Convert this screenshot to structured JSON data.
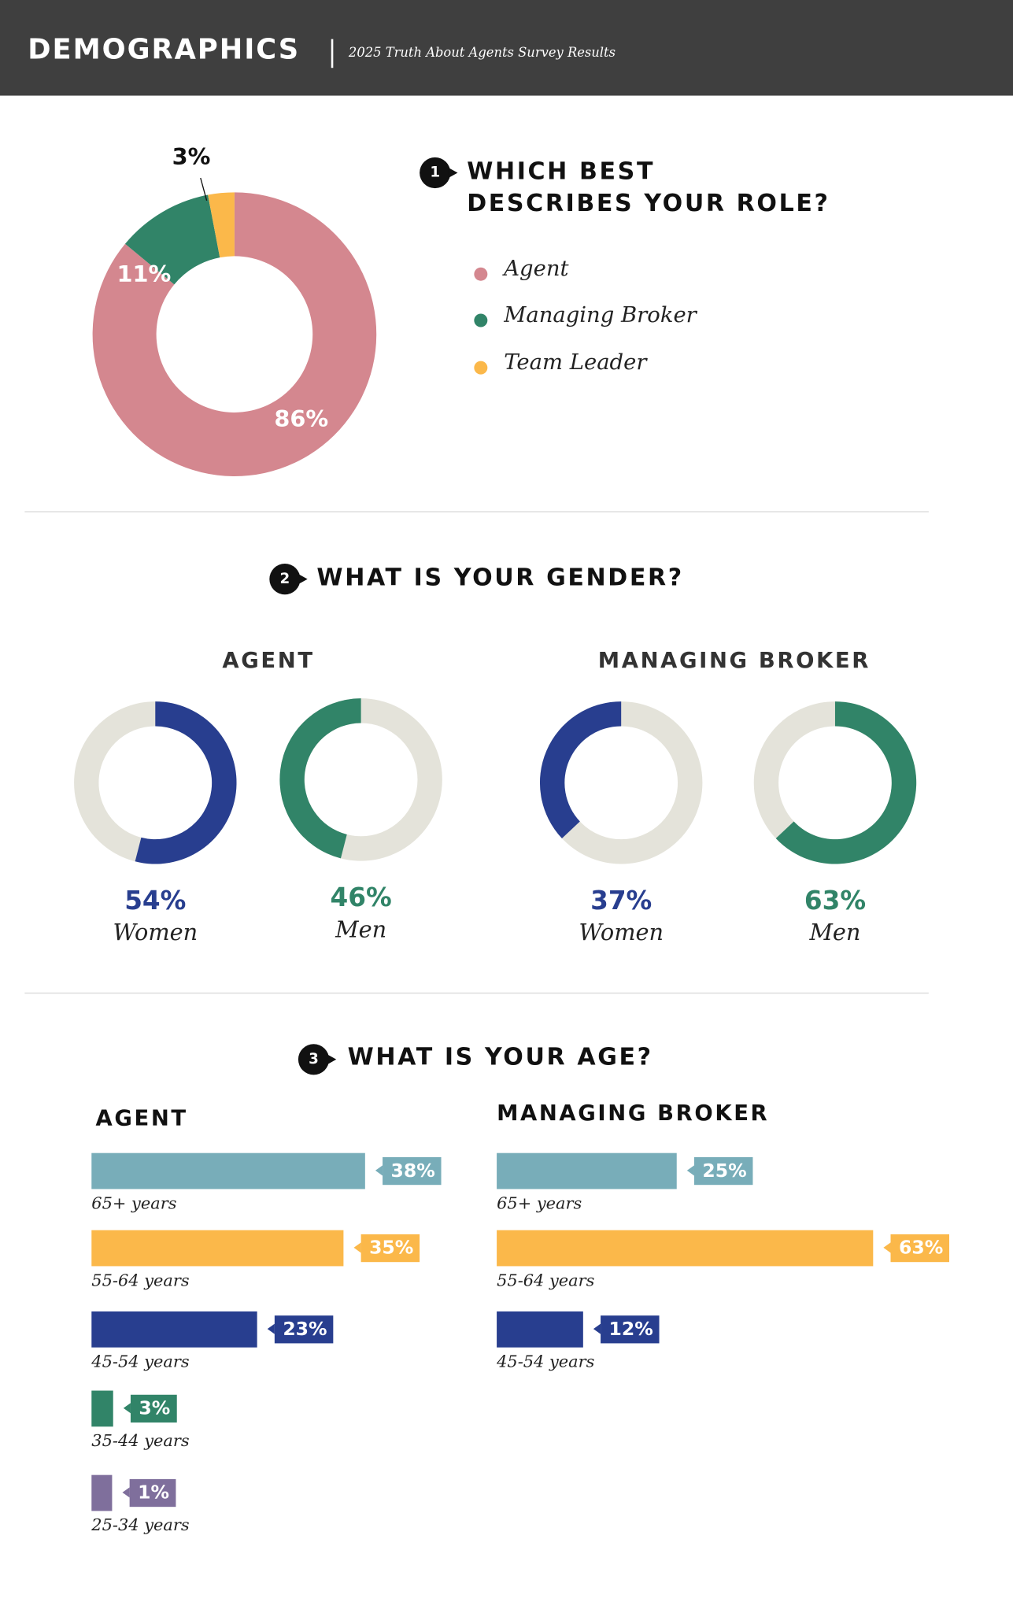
{
  "header": {
    "title": "DEMOGRAPHICS",
    "subtitle": "2025 Truth About Agents Survey Results"
  },
  "colors": {
    "agent": "#d4878f",
    "managing_broker": "#318468",
    "team_leader": "#fbb84a",
    "women": "#283e8f",
    "men": "#318468",
    "ring": "#e4e3da"
  },
  "chart_data": [
    {
      "type": "pie",
      "number": "1",
      "title_line1": "WHICH BEST",
      "title_line2": "DESCRIBES YOUR ROLE?",
      "slices": [
        {
          "name": "Agent",
          "value": 86,
          "label": "86%",
          "color": "#d4878f"
        },
        {
          "name": "Managing Broker",
          "value": 11,
          "label": "11%",
          "color": "#318468"
        },
        {
          "name": "Team Leader",
          "value": 3,
          "label": "3%",
          "color": "#fbb84a"
        }
      ]
    },
    {
      "type": "pie",
      "number": "2",
      "title": "WHAT IS YOUR GENDER?",
      "groups": [
        {
          "name": "AGENT",
          "items": [
            {
              "label": "Women",
              "value": 54,
              "pct": "54%",
              "color": "#283e8f",
              "dir": "cw"
            },
            {
              "label": "Men",
              "value": 46,
              "pct": "46%",
              "color": "#318468",
              "dir": "ccw"
            }
          ]
        },
        {
          "name": "MANAGING BROKER",
          "items": [
            {
              "label": "Women",
              "value": 37,
              "pct": "37%",
              "color": "#283e8f",
              "dir": "ccw"
            },
            {
              "label": "Men",
              "value": 63,
              "pct": "63%",
              "color": "#318468",
              "dir": "cw"
            }
          ]
        }
      ]
    },
    {
      "type": "bar",
      "number": "3",
      "title": "WHAT IS YOUR AGE?",
      "groups": [
        {
          "name": "AGENT",
          "bars": [
            {
              "category": "65+ years",
              "value": 38,
              "label": "38%",
              "color": "#78adb9"
            },
            {
              "category": "55-64 years",
              "value": 35,
              "label": "35%",
              "color": "#fbb84a"
            },
            {
              "category": "45-54 years",
              "value": 23,
              "label": "23%",
              "color": "#283e8f"
            },
            {
              "category": "35-44 years",
              "value": 3,
              "label": "3%",
              "color": "#318468"
            },
            {
              "category": "25-34 years",
              "value": 1,
              "label": "1%",
              "color": "#7f6f9c"
            }
          ]
        },
        {
          "name": "MANAGING BROKER",
          "bars": [
            {
              "category": "65+ years",
              "value": 25,
              "label": "25%",
              "color": "#78adb9"
            },
            {
              "category": "55-64 years",
              "value": 63,
              "label": "63%",
              "color": "#fbb84a"
            },
            {
              "category": "45-54 years",
              "value": 12,
              "label": "12%",
              "color": "#283e8f"
            }
          ]
        }
      ]
    }
  ]
}
